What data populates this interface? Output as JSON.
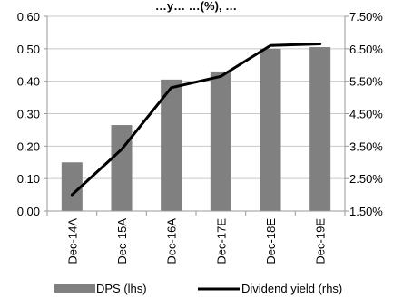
{
  "chart_data": {
    "type": "bar",
    "title": "…y… …(%), …",
    "categories": [
      "Dec-14A",
      "Dec-15A",
      "Dec-16A",
      "Dec-17E",
      "Dec-18E",
      "Dec-19E"
    ],
    "series": [
      {
        "name": "DPS (lhs)",
        "kind": "bar",
        "axis": "left",
        "color": "#808080",
        "values": [
          0.15,
          0.265,
          0.405,
          0.43,
          0.5,
          0.505
        ]
      },
      {
        "name": "Dividend yield (rhs)",
        "kind": "line",
        "axis": "right",
        "color": "#000000",
        "values": [
          2.0,
          3.4,
          5.3,
          5.65,
          6.6,
          6.65
        ]
      }
    ],
    "left_axis": {
      "min": 0,
      "max": 0.6,
      "ticks": [
        "0.00",
        "0.10",
        "0.20",
        "0.30",
        "0.40",
        "0.50",
        "0.60"
      ]
    },
    "right_axis": {
      "min": 1.5,
      "max": 7.5,
      "ticks": [
        "1.50%",
        "2.50%",
        "3.50%",
        "4.50%",
        "5.50%",
        "6.50%",
        "7.50%"
      ]
    },
    "grid": "horizontal",
    "legend_position": "bottom"
  }
}
